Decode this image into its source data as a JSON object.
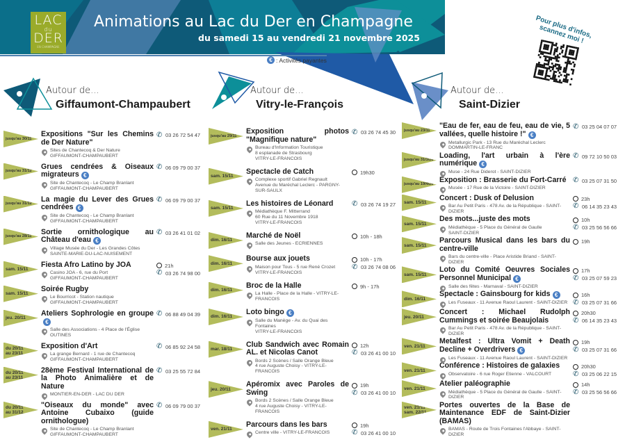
{
  "header": {
    "title": "Animations au Lac du Der en Champagne",
    "subtitle": "du samedi 15 au vendredi 21 novembre 2025",
    "logo": {
      "l1": "LAC",
      "l2": "du",
      "l3": "DER",
      "l4": "EN CHAMPAGNE"
    },
    "legend": "Activités payantes",
    "legend_prefix": ":",
    "qr_text": "Pour plus d'infos, scannez moi !"
  },
  "colors": {
    "dark": "#0e5a78",
    "teal": "#0d8f99",
    "blue": "#1f5aa6",
    "green": "#9aab2a",
    "tag": "#b3bc5c",
    "phone": "#164d62",
    "euro": "#4a7fc4"
  },
  "icons": {
    "location": "map-pin-icon",
    "time": "clock-icon",
    "phone": "phone-icon",
    "paid": "euro-icon"
  },
  "sections": [
    {
      "lead": "Autour de...",
      "city": "Giffaumont-Champaubert",
      "events": [
        {
          "date": [
            "jusqu'au 30/11"
          ],
          "title": "Expositions \"Sur les Chemins de Der Nature\"",
          "loc": [
            "Sites de Chantecoq & Der Nature",
            "GIFFAUMONT-CHAMPAUBERT"
          ],
          "phone": "03 26 72 54 47"
        },
        {
          "date": [
            "jusqu'au 31/12"
          ],
          "title": "Grues cendrées & Oiseaux migrateurs",
          "paid": true,
          "loc": [
            "Site de Chantecoq - Le Champ Branlant",
            "GIFFAUMONT-CHAMPAUBERT"
          ],
          "phone": "06 09 79 00 37"
        },
        {
          "date": [
            "jusqu'au 31/12"
          ],
          "title": "La magie du Lever des Grues cendrées",
          "paid": true,
          "loc": [
            "Site de Chantecoq - Le Champ Branlant",
            "GIFFAUMONT-CHAMPAUBERT"
          ],
          "phone": "06 09 79 00 37"
        },
        {
          "date": [
            "jusqu'au 28/11"
          ],
          "title": "Sortie ornithologique au Château d'eau",
          "paid": true,
          "loc": [
            "Village Musée du Der - Les Grandes Côtes",
            "SAINTE-MARIE-DU-LAC-NUISEMENT"
          ],
          "phone": "03 26 41 01 02"
        },
        {
          "date": [
            "sam. 15/11"
          ],
          "title": "Fiesta Afro Latino by JOA",
          "loc": [
            "Casino JOA - 6, rue du Port",
            "GIFFAUMONT-CHAMPAUBERT"
          ],
          "time": "21h",
          "phone": "03 26 74 98 00"
        },
        {
          "date": [
            "sam. 15/11"
          ],
          "title": "Soirée Rugby",
          "loc": [
            "Le Bourricot - Station nautique",
            "GIFFAUMONT-CHAMPAUBERT"
          ]
        },
        {
          "date": [
            "jeu. 20/11"
          ],
          "title": "Ateliers Sophrologie en groupe",
          "paid": true,
          "loc": [
            "Salle des Associations - 4 Place de l'Église",
            "OUTINES"
          ],
          "phone": "06 88 49 04 39"
        },
        {
          "date": [
            "du 20/11",
            "au 23/11"
          ],
          "title": "Exposition d'Art",
          "loc": [
            "La grange Bernard - 1 rue de Chantecoq",
            "GIFFAUMONT-CHAMPAUBERT"
          ],
          "phone": "06 85 92 24 58"
        },
        {
          "date": [
            "du 20/11",
            "au 23/11"
          ],
          "title": "28ème Festival International de la Photo Animalière et de Nature",
          "loc": [
            "MONTIER-EN-DER - LAC DU DER"
          ],
          "phone": "03 25 55 72 84"
        },
        {
          "date": [
            "du 20/11",
            "au 31/12"
          ],
          "title": "\"Oiseaux du monde\" avec Antoine Cubaixo (guide ornithologue)",
          "loc": [
            "Site de Chantecoq - Le Champ Branlant",
            "GIFFAUMONT-CHAMPAUBERT"
          ],
          "phone": "06 09 79 00 37"
        }
      ]
    },
    {
      "lead": "Autour de...",
      "city": "Vitry-le-François",
      "events": [
        {
          "date": [
            "jusqu'au 29/11"
          ],
          "title": "Exposition photos \"Magnifique nature\"",
          "loc": [
            "Bureau d'Information Touristique",
            "8 esplanade de Strasbourg",
            "VITRY-LE-FRANCOIS"
          ],
          "phone": "03 26 74 45 30"
        },
        {
          "date": [
            "sam. 15/11"
          ],
          "title": "Spectacle de Catch",
          "loc": [
            "Complexe sportif Gabriel Regnault",
            "Avenue du Maréchal Leclerc - PARGNY-SUR-SAULX"
          ],
          "time": "19h30"
        },
        {
          "date": [
            "sam. 15/11"
          ],
          "title": "Les histoires de Léonard",
          "loc": [
            "Médiathèque F. Mitterrand",
            "60 Rue du 11 Novembre 1918",
            "VITRY-LE-FRANCOIS"
          ],
          "phone": "03 26 74 19 27"
        },
        {
          "date": [
            "dim. 16/11"
          ],
          "title": "Marché de Noël",
          "loc": [
            "Salle des Jeunes - ECRIENNES"
          ],
          "time": "10h - 18h"
        },
        {
          "date": [
            "dim. 16/11"
          ],
          "title": "Bourse aux jouets",
          "loc": [
            "Maison pour Tous - 5 rue René Crozet",
            "VITRY-LE-FRANCOIS"
          ],
          "time": "10h - 17h",
          "phone": "03 26 74 08 06"
        },
        {
          "date": [
            "dim. 16/11"
          ],
          "title": "Broc de la Halle",
          "loc": [
            "La Halle - Place de la Halle - VITRY-LE-FRANCOIS"
          ],
          "time": "9h - 17h"
        },
        {
          "date": [
            "dim. 16/11"
          ],
          "title": "Loto bingo",
          "paid": true,
          "loc": [
            "Salle du Manège - Av. du Quai des Fontaines",
            "VITRY-LE-FRANCOIS"
          ]
        },
        {
          "date": [
            "mar. 18/11"
          ],
          "title": "Club Sandwich avec Romain AL. et Nicolas Canot",
          "loc": [
            "Bords 2 Scènes / Salle Orange Bleue",
            "4 rue Auguste Choisy - VITRY-LE-FRANCOIS"
          ],
          "time": "12h",
          "phone": "03 26 41 00 10"
        },
        {
          "date": [
            "jeu. 20/11"
          ],
          "title": "Apéromix avec Paroles de Swing",
          "loc": [
            "Bords 2 Scènes / Salle Orange Bleue",
            "4 rue Auguste Choisy - VITRY-LE-FRANCOIS"
          ],
          "time": "19h",
          "phone": "03 26 41 00 10"
        },
        {
          "date": [
            "ven. 21/11"
          ],
          "title": "Parcours dans les bars",
          "loc": [
            "Centre ville - VITRY-LE-FRANCOIS"
          ],
          "time": "19h",
          "phone": "03 26 41 00 10"
        }
      ]
    },
    {
      "lead": "Autour de...",
      "city": "Saint-Dizier",
      "events": [
        {
          "date": [
            "jusqu'au 23/11"
          ],
          "title": "\"Eau de fer, eau de feu, eau de vie, 5 vallées, quelle histoire !\"",
          "paid": true,
          "loc": [
            "Metallurgic Park - 13 Rue du Maréchal Leclerc",
            "DOMMARTIN-LE-FRANC"
          ],
          "phone": "03 25 04 07 07"
        },
        {
          "date": [
            "jusqu'au 31/3/26"
          ],
          "title": "Loading, l'art urbain à l'ère numérique",
          "paid": true,
          "loc": [
            "Muse - 24 Rue Diderot - SAINT-DIZIER"
          ],
          "phone": "09 72 10 50 03"
        },
        {
          "date": [
            "jusqu'au 19/4/26"
          ],
          "title": "Exposition : Brasserie du Fort-Carré",
          "loc": [
            "Musée - 17 Rue de la Victoire - SAINT-DIZIER"
          ],
          "phone": "03 25 07 31 50"
        },
        {
          "date": [
            "sam. 15/11"
          ],
          "title": "Concert : Dusk of Delusion",
          "loc": [
            "Bar Au Petit Paris - 478 Av. de la République - SAINT-DIZIER"
          ],
          "time": "23h",
          "phone": "06 14 35 23 43"
        },
        {
          "date": [
            "sam. 15/11"
          ],
          "title": "Des mots...juste des mots",
          "loc": [
            "Médiathèque - 5 Place du Général de Gaulle",
            "SAINT-DIZIER"
          ],
          "time": "10h",
          "phone": "03 25 56 56 66"
        },
        {
          "date": [
            "sam. 15/11"
          ],
          "title": "Parcours Musical dans les bars du centre-ville",
          "loc": [
            "Bars du centre-ville - Place Aristide Briand - SAINT-DIZIER"
          ],
          "time": "19h"
        },
        {
          "date": [
            "sam. 15/11"
          ],
          "title": "Loto du Comité Oeuvres Sociales Personnel Municipal",
          "paid": true,
          "loc": [
            "Salle des fêtes - Marnaval - SAINT-DIZIER"
          ],
          "time": "17h",
          "phone": "03 25 07 59 23"
        },
        {
          "date": [
            "dim. 16/11"
          ],
          "title": "Spectacle : Gainsbourg for kids",
          "paid": true,
          "loc": [
            "Les Fuseaux - 11 Avenue Raoul Laurent - SAINT-DIZIER"
          ],
          "time": "16h",
          "phone": "03 25 07 31 66"
        },
        {
          "date": [
            "jeu. 20/11"
          ],
          "title": "Concert : Michael Rudolph Cummings et soirée Beaujolais",
          "loc": [
            "Bar Au Petit Paris - 478 Av. de la République - SAINT-DIZIER"
          ],
          "time": "20h30",
          "phone": "06 14 35 23 43"
        },
        {
          "date": [
            "ven. 21/11"
          ],
          "title": "Metalfest : Ultra Vomit + Death Decline + Overdrivers",
          "paid": true,
          "loc": [
            "Les Fuseaux - 11 Avenue Raoul Laurent - SAINT-DIZIER"
          ],
          "time": "19h",
          "phone": "03 25 07 31 66"
        },
        {
          "date": [
            "ven. 21/11"
          ],
          "title": "Conférence : Histoires de galaxies",
          "loc": [
            "Observatoire - 6 rue Roger Etienne - VALCOURT"
          ],
          "time": "20h30",
          "phone": "03 25 06 22 15"
        },
        {
          "date": [
            "ven. 21/11"
          ],
          "title": "Atelier paléographie",
          "loc": [
            "Médiathèque - 5 Place du Général de Gaulle - SAINT-DIZIER"
          ],
          "time": "14h",
          "phone": "03 25 56 56 66"
        },
        {
          "date": [
            "ven. 21/11",
            "sam. 22/11"
          ],
          "title": "Portes ouvertes de la Base de Maintenance EDF de Saint-Dizier (BAMAS)",
          "loc": [
            "BAMAS - Route de Trois Fontaines l'Abbaye - SAINT-DIZIER"
          ]
        }
      ]
    }
  ]
}
